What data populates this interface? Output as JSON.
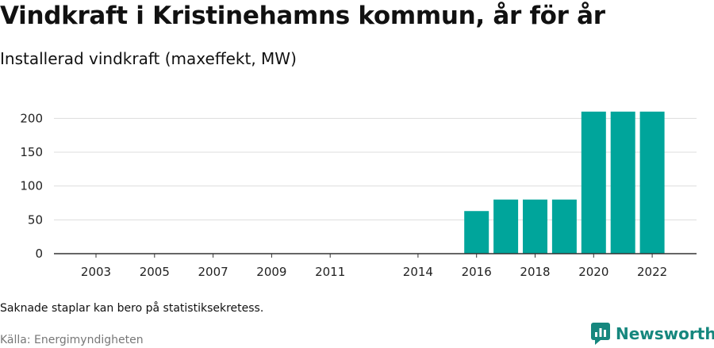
{
  "title": "Vindkraft i Kristinehamns kommun, år för år",
  "subtitle": "Installerad vindkraft (maxeffekt, MW)",
  "note": "Saknade staplar kan bero på statistiksekretess.",
  "source": "Källa: Energimyndigheten",
  "brand": {
    "name": "Newsworthy",
    "icon": "bar-chart-logo-icon",
    "color": "#16877e"
  },
  "colors": {
    "bar": "#00a59b",
    "grid": "#dddddd",
    "axis": "#333333"
  },
  "chart_data": {
    "type": "bar",
    "categories": [
      "2003",
      "2004",
      "2005",
      "2006",
      "2007",
      "2008",
      "2009",
      "2010",
      "2011",
      "2014",
      "2015",
      "2016",
      "2017",
      "2018",
      "2019",
      "2020",
      "2021",
      "2022"
    ],
    "tick_labels": [
      "2003",
      "2005",
      "2007",
      "2009",
      "2011",
      "2014",
      "2016",
      "2018",
      "2020",
      "2022"
    ],
    "values": [
      null,
      null,
      null,
      null,
      null,
      null,
      null,
      null,
      null,
      null,
      null,
      63,
      80,
      80,
      80,
      210,
      210,
      210
    ],
    "ylim": [
      0,
      225
    ],
    "yticks": [
      0,
      50,
      100,
      150,
      200
    ],
    "grid": true,
    "legend": "none"
  }
}
